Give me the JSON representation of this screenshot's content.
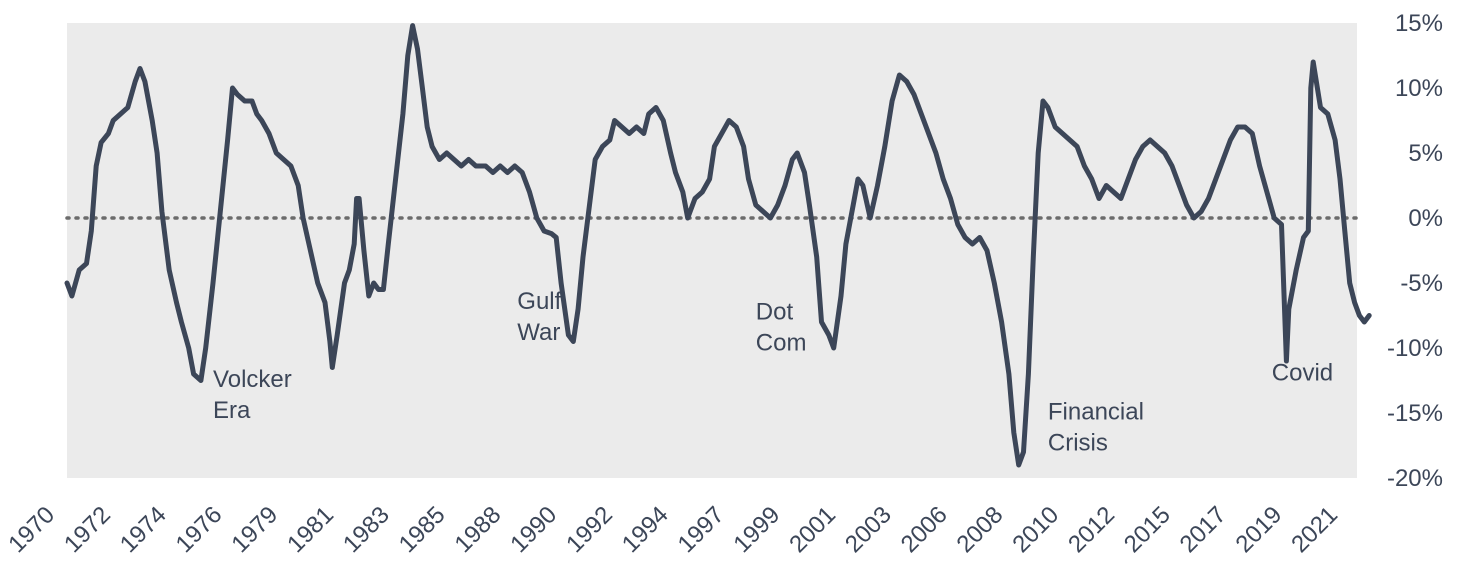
{
  "chart_data": {
    "type": "line",
    "title": "",
    "xlabel": "",
    "ylabel": "",
    "x_tick_labels": [
      "1970",
      "1972",
      "1974",
      "1976",
      "1979",
      "1981",
      "1983",
      "1985",
      "1988",
      "1990",
      "1992",
      "1994",
      "1997",
      "1999",
      "2001",
      "2003",
      "2006",
      "2008",
      "2010",
      "2012",
      "2015",
      "2017",
      "2019",
      "2021"
    ],
    "y_tick_labels": [
      "15%",
      "10%",
      "5%",
      "0%",
      "-5%",
      "-10%",
      "-15%",
      "-20%"
    ],
    "y_tick_values": [
      15,
      10,
      5,
      0,
      -5,
      -10,
      -15,
      -20
    ],
    "ylim": [
      -20,
      15
    ],
    "xlim": [
      1970.0,
      2023.0
    ],
    "y_axis_side": "right",
    "grid": false,
    "background_color": "#ebebeb",
    "line_color": "#3c4658",
    "reference_line": {
      "y": 0,
      "style": "dotted",
      "color": "#6b6b6b"
    },
    "series": [
      {
        "points": [
          [
            1970.0,
            -5.0
          ],
          [
            1970.2,
            -6.0
          ],
          [
            1970.5,
            -4.0
          ],
          [
            1970.8,
            -3.5
          ],
          [
            1971.0,
            -1.0
          ],
          [
            1971.2,
            4.0
          ],
          [
            1971.4,
            5.8
          ],
          [
            1971.7,
            6.5
          ],
          [
            1971.9,
            7.5
          ],
          [
            1972.2,
            8.0
          ],
          [
            1972.5,
            8.5
          ],
          [
            1972.8,
            10.5
          ],
          [
            1973.0,
            11.5
          ],
          [
            1973.2,
            10.5
          ],
          [
            1973.5,
            7.5
          ],
          [
            1973.7,
            5.0
          ],
          [
            1973.9,
            0.5
          ],
          [
            1974.2,
            -4.0
          ],
          [
            1974.5,
            -6.5
          ],
          [
            1974.7,
            -8.0
          ],
          [
            1975.0,
            -10.0
          ],
          [
            1975.2,
            -12.0
          ],
          [
            1975.5,
            -12.5
          ],
          [
            1975.7,
            -10.0
          ],
          [
            1976.0,
            -5.0
          ],
          [
            1976.3,
            0.5
          ],
          [
            1976.6,
            6.0
          ],
          [
            1976.8,
            10.0
          ],
          [
            1977.0,
            9.5
          ],
          [
            1977.3,
            9.0
          ],
          [
            1977.6,
            9.0
          ],
          [
            1977.8,
            8.0
          ],
          [
            1978.0,
            7.5
          ],
          [
            1978.3,
            6.5
          ],
          [
            1978.6,
            5.0
          ],
          [
            1978.9,
            4.5
          ],
          [
            1979.2,
            4.0
          ],
          [
            1979.5,
            2.5
          ],
          [
            1979.7,
            0.0
          ],
          [
            1980.0,
            -2.5
          ],
          [
            1980.3,
            -5.0
          ],
          [
            1980.6,
            -6.5
          ],
          [
            1980.8,
            -9.5
          ],
          [
            1980.9,
            -11.5
          ],
          [
            1981.1,
            -9.0
          ],
          [
            1981.4,
            -5.0
          ],
          [
            1981.6,
            -4.0
          ],
          [
            1981.8,
            -2.0
          ],
          [
            1981.9,
            1.5
          ],
          [
            1982.0,
            1.5
          ],
          [
            1982.2,
            -2.5
          ],
          [
            1982.4,
            -6.0
          ],
          [
            1982.6,
            -5.0
          ],
          [
            1982.8,
            -5.5
          ],
          [
            1983.0,
            -5.5
          ],
          [
            1983.2,
            -2.0
          ],
          [
            1983.5,
            3.0
          ],
          [
            1983.8,
            8.0
          ],
          [
            1984.0,
            12.5
          ],
          [
            1984.2,
            14.8
          ],
          [
            1984.4,
            13.0
          ],
          [
            1984.6,
            10.0
          ],
          [
            1984.8,
            7.0
          ],
          [
            1985.0,
            5.5
          ],
          [
            1985.3,
            4.5
          ],
          [
            1985.6,
            5.0
          ],
          [
            1985.9,
            4.5
          ],
          [
            1986.2,
            4.0
          ],
          [
            1986.5,
            4.5
          ],
          [
            1986.8,
            4.0
          ],
          [
            1987.2,
            4.0
          ],
          [
            1987.5,
            3.5
          ],
          [
            1987.8,
            4.0
          ],
          [
            1988.1,
            3.5
          ],
          [
            1988.4,
            4.0
          ],
          [
            1988.7,
            3.5
          ],
          [
            1989.0,
            2.0
          ],
          [
            1989.3,
            0.0
          ],
          [
            1989.6,
            -1.0
          ],
          [
            1989.9,
            -1.2
          ],
          [
            1990.1,
            -1.5
          ],
          [
            1990.3,
            -5.0
          ],
          [
            1990.6,
            -9.0
          ],
          [
            1990.8,
            -9.5
          ],
          [
            1991.0,
            -7.0
          ],
          [
            1991.2,
            -3.0
          ],
          [
            1991.5,
            1.5
          ],
          [
            1991.7,
            4.5
          ],
          [
            1992.0,
            5.5
          ],
          [
            1992.3,
            6.0
          ],
          [
            1992.5,
            7.5
          ],
          [
            1992.8,
            7.0
          ],
          [
            1993.1,
            6.5
          ],
          [
            1993.4,
            7.0
          ],
          [
            1993.7,
            6.5
          ],
          [
            1993.9,
            8.0
          ],
          [
            1994.2,
            8.5
          ],
          [
            1994.5,
            7.5
          ],
          [
            1994.8,
            5.0
          ],
          [
            1995.0,
            3.5
          ],
          [
            1995.3,
            2.0
          ],
          [
            1995.5,
            0.0
          ],
          [
            1995.8,
            1.5
          ],
          [
            1996.1,
            2.0
          ],
          [
            1996.4,
            3.0
          ],
          [
            1996.6,
            5.5
          ],
          [
            1996.9,
            6.5
          ],
          [
            1997.2,
            7.5
          ],
          [
            1997.5,
            7.0
          ],
          [
            1997.8,
            5.5
          ],
          [
            1998.0,
            3.0
          ],
          [
            1998.3,
            1.0
          ],
          [
            1998.6,
            0.5
          ],
          [
            1998.9,
            0.0
          ],
          [
            1999.2,
            1.0
          ],
          [
            1999.5,
            2.5
          ],
          [
            1999.8,
            4.5
          ],
          [
            2000.0,
            5.0
          ],
          [
            2000.3,
            3.5
          ],
          [
            2000.5,
            1.0
          ],
          [
            2000.8,
            -3.0
          ],
          [
            2001.0,
            -8.0
          ],
          [
            2001.3,
            -9.0
          ],
          [
            2001.5,
            -10.0
          ],
          [
            2001.8,
            -6.0
          ],
          [
            2002.0,
            -2.0
          ],
          [
            2002.3,
            1.0
          ],
          [
            2002.5,
            3.0
          ],
          [
            2002.7,
            2.5
          ],
          [
            2003.0,
            0.0
          ],
          [
            2003.3,
            2.5
          ],
          [
            2003.6,
            5.5
          ],
          [
            2003.9,
            9.0
          ],
          [
            2004.2,
            11.0
          ],
          [
            2004.5,
            10.5
          ],
          [
            2004.8,
            9.5
          ],
          [
            2005.1,
            8.0
          ],
          [
            2005.4,
            6.5
          ],
          [
            2005.7,
            5.0
          ],
          [
            2006.0,
            3.0
          ],
          [
            2006.3,
            1.5
          ],
          [
            2006.6,
            -0.5
          ],
          [
            2006.9,
            -1.5
          ],
          [
            2007.2,
            -2.0
          ],
          [
            2007.5,
            -1.5
          ],
          [
            2007.8,
            -2.5
          ],
          [
            2008.1,
            -5.0
          ],
          [
            2008.4,
            -8.0
          ],
          [
            2008.7,
            -12.0
          ],
          [
            2008.9,
            -16.5
          ],
          [
            2009.1,
            -19.0
          ],
          [
            2009.3,
            -18.0
          ],
          [
            2009.5,
            -12.0
          ],
          [
            2009.7,
            -3.0
          ],
          [
            2009.9,
            5.0
          ],
          [
            2010.1,
            9.0
          ],
          [
            2010.3,
            8.5
          ],
          [
            2010.6,
            7.0
          ],
          [
            2010.9,
            6.5
          ],
          [
            2011.2,
            6.0
          ],
          [
            2011.5,
            5.5
          ],
          [
            2011.8,
            4.0
          ],
          [
            2012.1,
            3.0
          ],
          [
            2012.4,
            1.5
          ],
          [
            2012.7,
            2.5
          ],
          [
            2013.0,
            2.0
          ],
          [
            2013.3,
            1.5
          ],
          [
            2013.6,
            3.0
          ],
          [
            2013.9,
            4.5
          ],
          [
            2014.2,
            5.5
          ],
          [
            2014.5,
            6.0
          ],
          [
            2014.8,
            5.5
          ],
          [
            2015.1,
            5.0
          ],
          [
            2015.4,
            4.0
          ],
          [
            2015.7,
            2.5
          ],
          [
            2016.0,
            1.0
          ],
          [
            2016.3,
            0.0
          ],
          [
            2016.6,
            0.5
          ],
          [
            2016.9,
            1.5
          ],
          [
            2017.2,
            3.0
          ],
          [
            2017.5,
            4.5
          ],
          [
            2017.8,
            6.0
          ],
          [
            2018.1,
            7.0
          ],
          [
            2018.4,
            7.0
          ],
          [
            2018.7,
            6.5
          ],
          [
            2019.0,
            4.0
          ],
          [
            2019.3,
            2.0
          ],
          [
            2019.6,
            0.0
          ],
          [
            2019.9,
            -0.5
          ],
          [
            2020.1,
            -11.0
          ],
          [
            2020.2,
            -7.0
          ],
          [
            2020.5,
            -4.0
          ],
          [
            2020.8,
            -1.5
          ],
          [
            2021.0,
            -1.0
          ],
          [
            2021.1,
            10.0
          ],
          [
            2021.2,
            12.0
          ],
          [
            2021.5,
            8.5
          ],
          [
            2021.8,
            8.0
          ],
          [
            2022.1,
            6.0
          ],
          [
            2022.3,
            3.0
          ],
          [
            2022.5,
            -1.0
          ],
          [
            2022.7,
            -5.0
          ],
          [
            2022.9,
            -6.5
          ],
          [
            2023.1,
            -7.5
          ],
          [
            2023.3,
            -8.0
          ],
          [
            2023.5,
            -7.5
          ]
        ]
      }
    ],
    "annotations": [
      {
        "lines": [
          "Volcker",
          "Era"
        ],
        "x": 1976.0,
        "y": -13.0
      },
      {
        "lines": [
          "Gulf",
          "War"
        ],
        "x": 1988.5,
        "y": -7.0
      },
      {
        "lines": [
          "Dot",
          "Com"
        ],
        "x": 1998.3,
        "y": -7.8
      },
      {
        "lines": [
          "Financial",
          "Crisis"
        ],
        "x": 2010.3,
        "y": -15.5
      },
      {
        "lines": [
          "Covid"
        ],
        "x": 2019.5,
        "y": -12.5
      }
    ]
  }
}
